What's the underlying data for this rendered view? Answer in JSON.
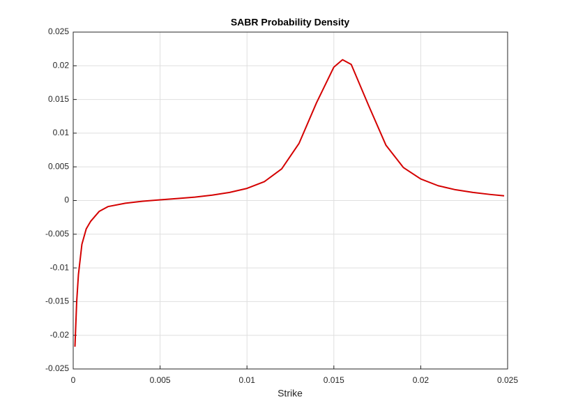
{
  "chart_data": {
    "type": "line",
    "title": "SABR Probability Density",
    "x_label": "Strike",
    "x": [
      0.0001,
      0.0002,
      0.0003,
      0.0005,
      0.00075,
      0.001,
      0.0015,
      0.002,
      0.003,
      0.004,
      0.005,
      0.006,
      0.007,
      0.008,
      0.009,
      0.01,
      0.011,
      0.012,
      0.013,
      0.014,
      0.015,
      0.0155,
      0.016,
      0.017,
      0.018,
      0.019,
      0.02,
      0.021,
      0.022,
      0.023,
      0.024,
      0.0248
    ],
    "series": [
      {
        "color": "#d40000",
        "values": [
          -0.0217,
          -0.015,
          -0.011,
          -0.0065,
          -0.0042,
          -0.0031,
          -0.0016,
          -0.0009,
          -0.0004,
          -0.0001,
          0.0001,
          0.0003,
          0.0005,
          0.0008,
          0.0012,
          0.0018,
          0.0028,
          0.0047,
          0.0085,
          0.0145,
          0.0198,
          0.0209,
          0.0202,
          0.0141,
          0.0082,
          0.0049,
          0.0032,
          0.0022,
          0.0016,
          0.0012,
          0.0009,
          0.0007
        ]
      }
    ],
    "xlim": [
      0,
      0.025
    ],
    "xticks": [
      0,
      0.005,
      0.01,
      0.015,
      0.02,
      0.025
    ],
    "ylim": [
      -0.025,
      0.025
    ],
    "yticks": [
      -0.025,
      -0.02,
      -0.015,
      -0.01,
      -0.005,
      0,
      0.005,
      0.01,
      0.015,
      0.02,
      0.025
    ],
    "grid": true
  }
}
